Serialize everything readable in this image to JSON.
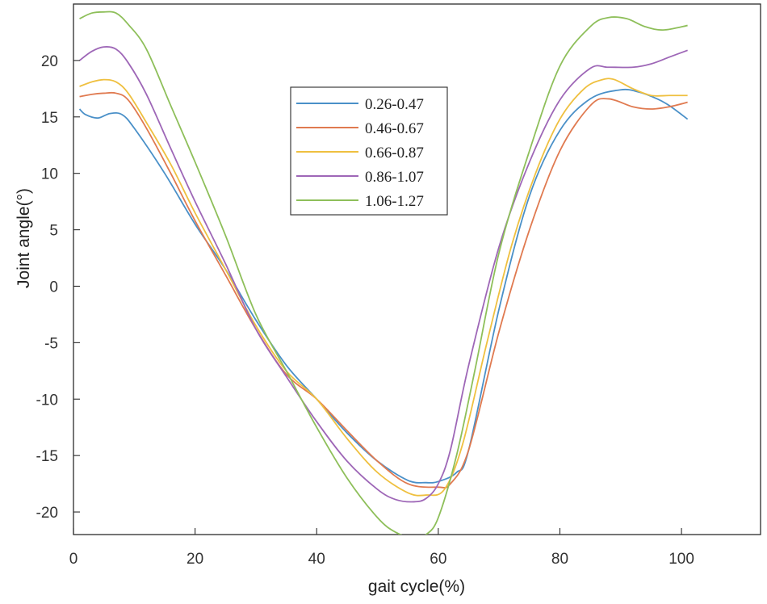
{
  "chart_data": {
    "type": "line",
    "title": "",
    "xlabel": "gait cycle(%)",
    "ylabel": "Joint angle(°)",
    "xlim": [
      0,
      113
    ],
    "ylim": [
      -22,
      25
    ],
    "xticks": [
      0,
      20,
      40,
      60,
      80,
      100
    ],
    "yticks": [
      -20,
      -15,
      -10,
      -5,
      0,
      5,
      10,
      15,
      20
    ],
    "grid": false,
    "legend_position": "upper-center",
    "series": [
      {
        "name": "0.26-0.47",
        "color": "#4A90C8",
        "x": [
          1,
          2,
          4,
          6,
          8,
          10,
          15,
          20,
          25,
          30,
          35,
          40,
          45,
          50,
          55,
          58,
          60,
          63,
          65,
          70,
          75,
          80,
          85,
          90,
          93,
          96,
          98,
          101
        ],
        "y": [
          15.7,
          15.2,
          14.9,
          15.3,
          15.2,
          14.0,
          10.0,
          5.5,
          1.5,
          -3.0,
          -7.0,
          -10.0,
          -13.0,
          -15.5,
          -17.2,
          -17.4,
          -17.3,
          -16.5,
          -14.5,
          -2.0,
          8.0,
          13.8,
          16.6,
          17.4,
          17.2,
          16.6,
          16.0,
          14.8
        ]
      },
      {
        "name": "0.46-0.67",
        "color": "#E07A50",
        "x": [
          1,
          3,
          5,
          7,
          9,
          12,
          16,
          20,
          25,
          30,
          35,
          40,
          45,
          50,
          55,
          60,
          62,
          65,
          70,
          75,
          80,
          85,
          88,
          92,
          95,
          98,
          101
        ],
        "y": [
          16.8,
          17.0,
          17.1,
          17.1,
          16.5,
          14.0,
          10.0,
          5.8,
          1.0,
          -3.8,
          -7.8,
          -10.0,
          -12.8,
          -15.5,
          -17.5,
          -17.8,
          -17.5,
          -14.5,
          -4.0,
          5.0,
          12.0,
          16.0,
          16.6,
          15.9,
          15.7,
          15.9,
          16.3
        ]
      },
      {
        "name": "0.66-0.87",
        "color": "#EFC040",
        "x": [
          1,
          3,
          5,
          7,
          9,
          12,
          16,
          20,
          25,
          30,
          35,
          40,
          45,
          50,
          55,
          58,
          61,
          64,
          68,
          72,
          76,
          80,
          84,
          87,
          89,
          92,
          95,
          98,
          101
        ],
        "y": [
          17.7,
          18.1,
          18.3,
          18.1,
          17.1,
          14.5,
          10.8,
          6.5,
          1.5,
          -3.5,
          -7.5,
          -10.0,
          -13.5,
          -16.5,
          -18.3,
          -18.5,
          -18.0,
          -14.0,
          -5.0,
          3.5,
          10.0,
          14.8,
          17.5,
          18.3,
          18.3,
          17.5,
          16.9,
          16.9,
          16.9
        ]
      },
      {
        "name": "0.86-1.07",
        "color": "#9E67B7",
        "x": [
          1,
          3,
          5,
          7,
          9,
          12,
          16,
          20,
          25,
          30,
          35,
          40,
          45,
          50,
          53,
          56,
          58,
          60,
          62,
          65,
          70,
          75,
          80,
          85,
          88,
          92,
          95,
          98,
          101
        ],
        "y": [
          20.0,
          20.8,
          21.2,
          21.0,
          19.8,
          17.0,
          12.2,
          7.5,
          2.0,
          -3.8,
          -8.0,
          -12.0,
          -15.5,
          -18.0,
          -18.9,
          -19.1,
          -18.8,
          -17.5,
          -14.5,
          -7.0,
          3.5,
          11.0,
          16.5,
          19.3,
          19.4,
          19.4,
          19.7,
          20.3,
          20.9
        ]
      },
      {
        "name": "1.06-1.27",
        "color": "#8EBF5A",
        "x": [
          1,
          3,
          5,
          7,
          9,
          12,
          16,
          20,
          25,
          30,
          35,
          40,
          45,
          50,
          53,
          56,
          58,
          60,
          63,
          66,
          70,
          75,
          80,
          85,
          88,
          91,
          94,
          97,
          101
        ],
        "y": [
          23.7,
          24.2,
          24.3,
          24.2,
          23.2,
          21.0,
          16.0,
          11.0,
          4.5,
          -2.5,
          -7.5,
          -12.5,
          -17.0,
          -20.5,
          -21.8,
          -22.3,
          -22.0,
          -20.5,
          -15.0,
          -7.5,
          3.0,
          12.0,
          19.5,
          23.0,
          23.8,
          23.7,
          23.0,
          22.7,
          23.1
        ]
      }
    ]
  }
}
